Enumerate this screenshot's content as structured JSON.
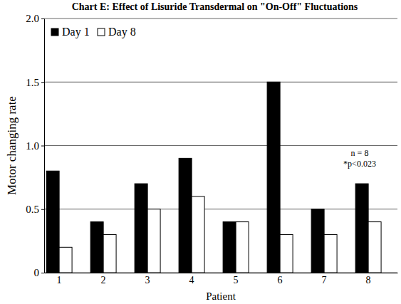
{
  "chart_data": {
    "type": "bar",
    "title": "Chart E: Effect of Lisuride Transdermal on \"On-Off\" Fluctuations",
    "x_label": "Patient",
    "y_label": "Motor changing rate",
    "categories": [
      "1",
      "2",
      "3",
      "4",
      "5",
      "6",
      "7",
      "8"
    ],
    "series": [
      {
        "name": "Day 1",
        "color": "#000000",
        "values": [
          0.8,
          0.4,
          0.7,
          0.9,
          0.4,
          1.5,
          0.5,
          0.7
        ]
      },
      {
        "name": "Day 8",
        "color": "#ffffff",
        "values": [
          0.2,
          0.3,
          0.5,
          0.6,
          0.4,
          0.3,
          0.3,
          0.4
        ]
      }
    ],
    "ylim": [
      0,
      2
    ],
    "yticks": [
      0,
      0.5,
      {
        "value": 1,
        "label": "1.0"
      },
      1.5,
      {
        "value": 2,
        "label": "2.0"
      }
    ],
    "grid": true,
    "legend": "upper left",
    "annotations": [
      "n = 8",
      "*p<0.023"
    ]
  }
}
